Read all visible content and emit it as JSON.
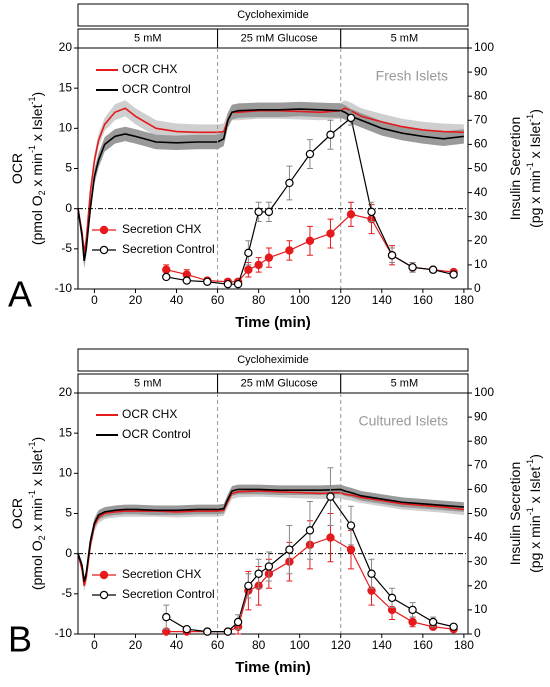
{
  "chart_data": [
    {
      "type": "line",
      "panel": "A",
      "annotation": "Fresh Islets",
      "header": {
        "title": "Cycloheximide",
        "segments": [
          {
            "label": "5 mM",
            "range": [
              -8,
              60
            ]
          },
          {
            "label": "25 mM Glucose",
            "range": [
              60,
              120
            ]
          },
          {
            "label": "5 mM",
            "range": [
              120,
              182
            ]
          }
        ]
      },
      "xlabel": "Time (min)",
      "ylabel": [
        {
          "text": "OCR"
        },
        [
          {
            "text": "(pmol O"
          },
          {
            "text": "2",
            "script": "sub"
          },
          {
            "text": " x min"
          },
          {
            "text": "-1",
            "script": "sup"
          },
          {
            "text": " x Islet"
          },
          {
            "text": "-1",
            "script": "sup"
          },
          {
            "text": ")"
          }
        ]
      ],
      "y2label": [
        {
          "text": "Insulin Secretion"
        },
        [
          {
            "text": "(pg x min"
          },
          {
            "text": "-1",
            "script": "sup"
          },
          {
            "text": " x Islet"
          },
          {
            "text": "-1",
            "script": "sup"
          },
          {
            "text": ")"
          }
        ]
      ],
      "xlim": [
        -8,
        182
      ],
      "xticks": [
        0,
        20,
        40,
        60,
        80,
        100,
        120,
        140,
        160,
        180
      ],
      "ylim": [
        -10,
        20
      ],
      "yticks": [
        -10,
        -5,
        0,
        5,
        10,
        15,
        20
      ],
      "y2lim": [
        0,
        100
      ],
      "y2ticks": [
        0,
        10,
        20,
        30,
        40,
        50,
        60,
        70,
        80,
        90,
        100
      ],
      "vlines": [
        60,
        120
      ],
      "hline": 0,
      "ocr_x": [
        -8,
        -6,
        -5,
        -4,
        -2,
        0,
        2,
        5,
        10,
        15,
        20,
        30,
        40,
        50,
        60,
        63,
        65,
        67,
        70,
        80,
        90,
        100,
        110,
        120,
        122,
        125,
        130,
        140,
        150,
        160,
        170,
        180
      ],
      "series": [
        {
          "name": "OCR CHX",
          "color": "#e41a1c",
          "band_color": "#cfcfcf",
          "values": [
            0,
            -3,
            -5.5,
            -4,
            2,
            6,
            8.5,
            10.5,
            12,
            12.5,
            11.5,
            10,
            9.6,
            9.5,
            9.5,
            9.6,
            11,
            12,
            12,
            12.2,
            12.2,
            12.1,
            12,
            12.2,
            12.5,
            12.2,
            11.5,
            10.8,
            10.2,
            9.8,
            9.6,
            9.5
          ],
          "error": [
            0.3,
            0.5,
            0.8,
            0.8,
            0.8,
            0.8,
            0.8,
            0.8,
            1,
            1,
            1,
            1,
            1,
            1,
            1,
            1,
            1,
            1,
            1,
            1,
            1,
            1,
            1,
            1,
            1,
            1,
            1,
            1,
            1,
            1,
            1,
            1
          ]
        },
        {
          "name": "OCR Control",
          "color": "#000000",
          "band_color": "#9a9a9a",
          "values": [
            0,
            -3.5,
            -6.5,
            -5,
            0,
            4,
            6,
            8,
            9,
            9.3,
            9,
            8.3,
            8.2,
            8.3,
            8.3,
            8.7,
            11,
            12,
            12.2,
            12.3,
            12.3,
            12.4,
            12.3,
            12.2,
            12,
            11.5,
            11,
            10,
            9.4,
            9,
            8.7,
            9
          ],
          "error": [
            0.3,
            0.5,
            0.9,
            0.9,
            0.9,
            0.9,
            0.9,
            0.9,
            0.9,
            0.9,
            0.9,
            0.9,
            0.9,
            0.9,
            0.9,
            0.9,
            0.9,
            0.9,
            0.9,
            0.9,
            0.9,
            0.9,
            0.9,
            0.9,
            0.9,
            0.9,
            0.9,
            0.9,
            0.9,
            0.9,
            0.9,
            0.9
          ]
        }
      ],
      "secretion_x": [
        35,
        45,
        55,
        65,
        70,
        75,
        80,
        85,
        95,
        105,
        115,
        125,
        135,
        145,
        155,
        165,
        175
      ],
      "secretion": [
        {
          "name": "Secretion CHX",
          "color": "#e41a1c",
          "marker": "filled",
          "axis": "y2",
          "values": [
            8,
            6,
            3.5,
            3,
            3,
            8,
            10,
            13,
            16,
            20,
            23,
            31,
            29,
            14,
            9,
            8,
            7
          ],
          "error": [
            2,
            2,
            1,
            1,
            1,
            3,
            3,
            4,
            4,
            6,
            6,
            5,
            6,
            4,
            2,
            1,
            1
          ]
        },
        {
          "name": "Secretion Control",
          "color": "#000000",
          "marker": "open",
          "axis": "y2",
          "values": [
            5,
            3.5,
            3,
            2,
            2,
            15,
            32,
            32,
            44,
            56,
            64,
            71,
            32,
            14,
            9,
            8,
            6
          ],
          "error": [
            1,
            1,
            1,
            1,
            1,
            5,
            4,
            4,
            7,
            6,
            6,
            3,
            4,
            3,
            2,
            1,
            1
          ]
        }
      ]
    },
    {
      "type": "line",
      "panel": "B",
      "annotation": "Cultured Islets",
      "header": {
        "title": "Cycloheximide",
        "segments": [
          {
            "label": "5 mM",
            "range": [
              -8,
              60
            ]
          },
          {
            "label": "25 mM Glucose",
            "range": [
              60,
              120
            ]
          },
          {
            "label": "5 mM",
            "range": [
              120,
              182
            ]
          }
        ]
      },
      "xlabel": "Time (min)",
      "ylabel": [
        {
          "text": "OCR"
        },
        [
          {
            "text": "(pmol O"
          },
          {
            "text": "2",
            "script": "sub"
          },
          {
            "text": " x min"
          },
          {
            "text": "-1",
            "script": "sup"
          },
          {
            "text": " x Islet"
          },
          {
            "text": "-1",
            "script": "sup"
          },
          {
            "text": ")"
          }
        ]
      ],
      "y2label": [
        {
          "text": "Insulin Secretion"
        },
        [
          {
            "text": "(pg x min"
          },
          {
            "text": "-1",
            "script": "sup"
          },
          {
            "text": " x Islet"
          },
          {
            "text": "-1",
            "script": "sup"
          },
          {
            "text": ")"
          }
        ]
      ],
      "xlim": [
        -8,
        182
      ],
      "xticks": [
        0,
        20,
        40,
        60,
        80,
        100,
        120,
        140,
        160,
        180
      ],
      "ylim": [
        -10,
        20
      ],
      "yticks": [
        -10,
        -5,
        0,
        5,
        10,
        15,
        20
      ],
      "y2lim": [
        0,
        100
      ],
      "y2ticks": [
        0,
        10,
        20,
        30,
        40,
        50,
        60,
        70,
        80,
        90,
        100
      ],
      "vlines": [
        60,
        120
      ],
      "hline": 0,
      "ocr_x": [
        -8,
        -6,
        -5,
        -4,
        -2,
        0,
        2,
        5,
        10,
        15,
        20,
        30,
        40,
        50,
        60,
        63,
        65,
        67,
        70,
        80,
        90,
        100,
        110,
        120,
        122,
        125,
        130,
        140,
        150,
        160,
        170,
        180
      ],
      "series": [
        {
          "name": "OCR CHX",
          "color": "#e41a1c",
          "band_color": "#cfcfcf",
          "values": [
            0,
            -2,
            -4,
            -3,
            1,
            3.5,
            4.5,
            5,
            5.2,
            5.3,
            5.3,
            5.3,
            5.2,
            5.3,
            5.3,
            5.4,
            6.5,
            7.5,
            7.7,
            7.8,
            7.7,
            7.6,
            7.5,
            7.6,
            7.4,
            7.3,
            7,
            6.6,
            6.2,
            6,
            5.8,
            5.5
          ],
          "error": [
            0.3,
            0.5,
            0.7,
            0.7,
            0.7,
            0.7,
            0.7,
            0.7,
            0.7,
            0.7,
            0.7,
            0.7,
            0.7,
            0.7,
            0.7,
            0.7,
            0.7,
            0.7,
            0.7,
            0.7,
            0.7,
            0.7,
            0.7,
            0.7,
            0.7,
            0.7,
            0.7,
            0.7,
            0.7,
            0.7,
            0.7,
            0.7
          ]
        },
        {
          "name": "OCR Control",
          "color": "#000000",
          "band_color": "#9a9a9a",
          "values": [
            0,
            -1.5,
            -3.5,
            -2.5,
            1.5,
            3.8,
            4.8,
            5.2,
            5.4,
            5.5,
            5.5,
            5.4,
            5.4,
            5.5,
            5.5,
            5.6,
            6.8,
            7.8,
            8,
            8,
            7.9,
            7.9,
            7.9,
            8,
            7.8,
            7.6,
            7.2,
            6.8,
            6.4,
            6.2,
            6,
            5.8
          ],
          "error": [
            0.3,
            0.5,
            0.6,
            0.6,
            0.6,
            0.6,
            0.6,
            0.6,
            0.6,
            0.6,
            0.6,
            0.6,
            0.6,
            0.6,
            0.6,
            0.6,
            0.6,
            0.6,
            0.6,
            0.6,
            0.6,
            0.6,
            0.6,
            0.6,
            0.6,
            0.6,
            0.6,
            0.6,
            0.6,
            0.6,
            0.6,
            0.6
          ]
        }
      ],
      "secretion_x": [
        35,
        45,
        55,
        65,
        70,
        75,
        80,
        85,
        95,
        105,
        115,
        125,
        135,
        145,
        155,
        165,
        175
      ],
      "secretion": [
        {
          "name": "Secretion CHX",
          "color": "#e41a1c",
          "marker": "filled",
          "axis": "y2",
          "values": [
            1,
            1,
            1,
            1,
            3,
            18,
            20,
            25,
            30,
            37,
            40,
            35,
            18,
            10,
            5,
            3,
            2
          ],
          "error": [
            1,
            1,
            1,
            1,
            3,
            8,
            8,
            6,
            8,
            10,
            10,
            8,
            6,
            4,
            2,
            1,
            1
          ]
        },
        {
          "name": "Secretion Control",
          "color": "#000000",
          "marker": "open",
          "axis": "y2",
          "values": [
            7,
            2,
            1,
            1,
            5,
            20,
            25,
            28,
            35,
            43,
            57,
            45,
            25,
            15,
            10,
            5,
            3
          ],
          "error": [
            5,
            1,
            1,
            1,
            3,
            5,
            6,
            6,
            10,
            12,
            12,
            8,
            6,
            4,
            3,
            2,
            1
          ]
        }
      ]
    }
  ]
}
